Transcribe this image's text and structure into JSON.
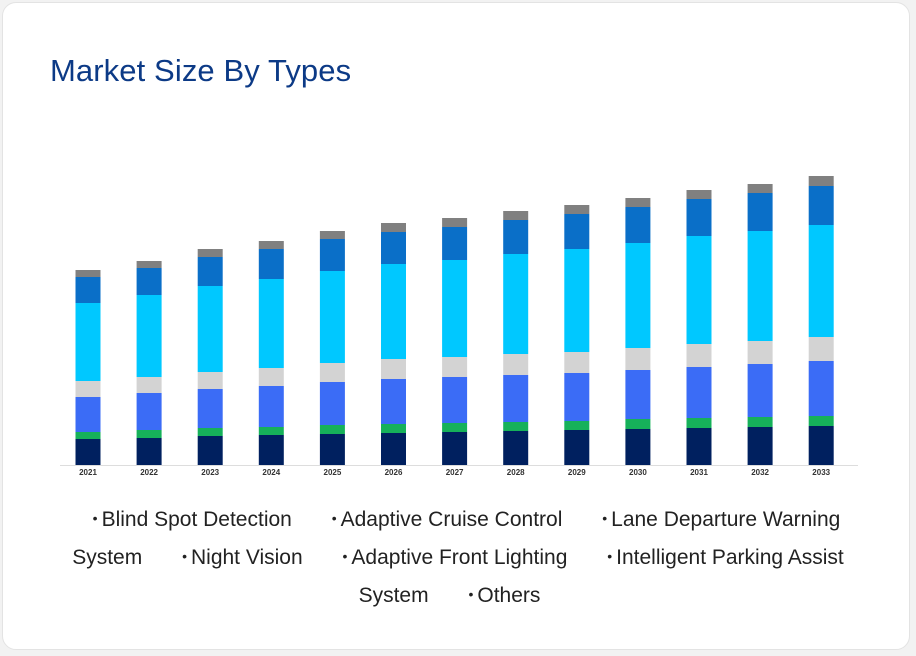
{
  "page": {
    "title": "Market Size By Types"
  },
  "chart_data": {
    "type": "bar",
    "stacked": true,
    "categories": [
      "2021",
      "2022",
      "2023",
      "2024",
      "2025",
      "2026",
      "2027",
      "2028",
      "2029",
      "2030",
      "2031",
      "2032",
      "2033"
    ],
    "series": [
      {
        "name": "Blind Spot Detection",
        "color": "#00205f",
        "values": [
          26,
          27,
          29,
          30,
          31,
          32,
          33,
          34,
          35,
          36,
          37,
          38,
          39
        ]
      },
      {
        "name": "Adaptive Cruise Control",
        "color": "#16b15a",
        "values": [
          7,
          8,
          8,
          8,
          9,
          9,
          9,
          9,
          9,
          10,
          10,
          10,
          10
        ]
      },
      {
        "name": "Lane Departure Warning System",
        "color": "#3b6cf6",
        "values": [
          35,
          37,
          39,
          41,
          43,
          45,
          46,
          47,
          48,
          49,
          51,
          53,
          55
        ]
      },
      {
        "name": "Night Vision",
        "color": "#d3d3d3",
        "values": [
          16,
          16,
          17,
          18,
          19,
          20,
          20,
          21,
          21,
          22,
          23,
          23,
          24
        ]
      },
      {
        "name": "Adaptive Front Lighting",
        "color": "#00c8ff",
        "values": [
          78,
          82,
          86,
          89,
          92,
          95,
          97,
          100,
          103,
          105,
          108,
          110,
          112
        ]
      },
      {
        "name": "Intelligent Parking Assist System",
        "color": "#0a6fc8",
        "values": [
          26,
          27,
          29,
          30,
          32,
          32,
          33,
          34,
          35,
          36,
          37,
          38,
          39
        ]
      },
      {
        "name": "Others",
        "color": "#808080",
        "values": [
          7,
          7,
          8,
          8,
          8,
          9,
          9,
          9,
          9,
          9,
          9,
          9,
          10
        ]
      }
    ],
    "title": "",
    "xlabel": "",
    "ylabel": "",
    "ylim": [
      0,
      300
    ],
    "grid": false,
    "legend_position": "bottom"
  }
}
